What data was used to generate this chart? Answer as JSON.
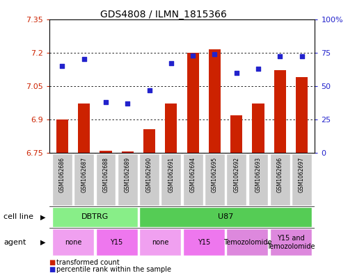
{
  "title": "GDS4808 / ILMN_1815366",
  "samples": [
    "GSM1062686",
    "GSM1062687",
    "GSM1062688",
    "GSM1062689",
    "GSM1062690",
    "GSM1062691",
    "GSM1062694",
    "GSM1062695",
    "GSM1062692",
    "GSM1062693",
    "GSM1062696",
    "GSM1062697"
  ],
  "red_values": [
    6.9,
    6.97,
    6.76,
    6.755,
    6.855,
    6.97,
    7.2,
    7.215,
    6.92,
    6.97,
    7.12,
    7.09
  ],
  "blue_values": [
    65,
    70,
    38,
    37,
    47,
    67,
    73,
    74,
    60,
    63,
    72,
    72
  ],
  "ylim": [
    6.75,
    7.35
  ],
  "y_ticks_left": [
    6.75,
    6.9,
    7.05,
    7.2,
    7.35
  ],
  "y_ticks_right": [
    0,
    25,
    50,
    75,
    100
  ],
  "y_labels_right": [
    "0",
    "25",
    "50",
    "75",
    "100%"
  ],
  "cell_line_groups": [
    {
      "label": "DBTRG",
      "start": 0,
      "end": 3,
      "color": "#88ee88"
    },
    {
      "label": "U87",
      "start": 4,
      "end": 11,
      "color": "#55cc55"
    }
  ],
  "agent_groups": [
    {
      "label": "none",
      "start": 0,
      "end": 1,
      "color": "#f0a0f0"
    },
    {
      "label": "Y15",
      "start": 2,
      "end": 3,
      "color": "#ee77ee"
    },
    {
      "label": "none",
      "start": 4,
      "end": 5,
      "color": "#f0a0f0"
    },
    {
      "label": "Y15",
      "start": 6,
      "end": 7,
      "color": "#ee77ee"
    },
    {
      "label": "Temozolomide",
      "start": 8,
      "end": 9,
      "color": "#dd88dd"
    },
    {
      "label": "Y15 and\nTemozolomide",
      "start": 10,
      "end": 11,
      "color": "#dd88dd"
    }
  ],
  "bar_color": "#cc2200",
  "dot_color": "#2222cc",
  "bg_color": "#cccccc",
  "plot_bg": "#ffffff"
}
